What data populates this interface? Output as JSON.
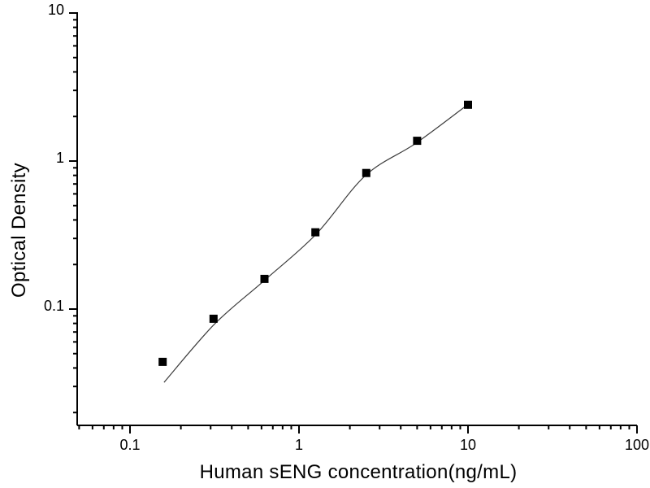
{
  "figure": {
    "background": "#ffffff"
  },
  "chart_data": {
    "type": "scatter",
    "title": "",
    "xlabel": "Human sENG concentration(ng/mL)",
    "ylabel": "Optical Density",
    "x_scale": "log",
    "y_scale": "log",
    "xlim": [
      0.048,
      100
    ],
    "ylim": [
      0.016,
      10
    ],
    "grid": false,
    "legend": "none",
    "x_axis": {
      "major_ticks": [
        0.1,
        1,
        10,
        100
      ],
      "major_labels": [
        "0.1",
        "1",
        "10",
        "100"
      ],
      "minor_ticks": [
        0.05,
        0.06,
        0.07,
        0.08,
        0.09,
        0.2,
        0.3,
        0.4,
        0.5,
        0.6,
        0.7,
        0.8,
        0.9,
        2,
        3,
        4,
        5,
        6,
        7,
        8,
        9,
        20,
        30,
        40,
        50,
        60,
        70,
        80,
        90
      ]
    },
    "y_axis": {
      "major_ticks": [
        0.1,
        1,
        10
      ],
      "major_labels": [
        "0.1",
        "1",
        "10"
      ],
      "minor_ticks": [
        0.02,
        0.03,
        0.04,
        0.05,
        0.06,
        0.07,
        0.08,
        0.09,
        0.2,
        0.3,
        0.4,
        0.5,
        0.6,
        0.7,
        0.8,
        0.9,
        2,
        3,
        4,
        5,
        6,
        7,
        8,
        9
      ]
    },
    "series": [
      {
        "name": "standard-points",
        "type": "scatter",
        "marker": "filled-square",
        "color": "#000000",
        "x": [
          0.156,
          0.312,
          0.625,
          1.25,
          2.5,
          5,
          10
        ],
        "y": [
          0.044,
          0.086,
          0.16,
          0.33,
          0.83,
          1.37,
          2.4
        ]
      },
      {
        "name": "fit-curve",
        "type": "line",
        "color": "#3c3c3c",
        "x": [
          0.159,
          0.316,
          0.628,
          1.26,
          2.48,
          4.92,
          9.89
        ],
        "y": [
          0.032,
          0.079,
          0.157,
          0.32,
          0.8,
          1.32,
          2.39
        ]
      }
    ],
    "colors": {
      "axis": "#000000",
      "marker": "#000000",
      "curve": "#3c3c3c"
    }
  }
}
